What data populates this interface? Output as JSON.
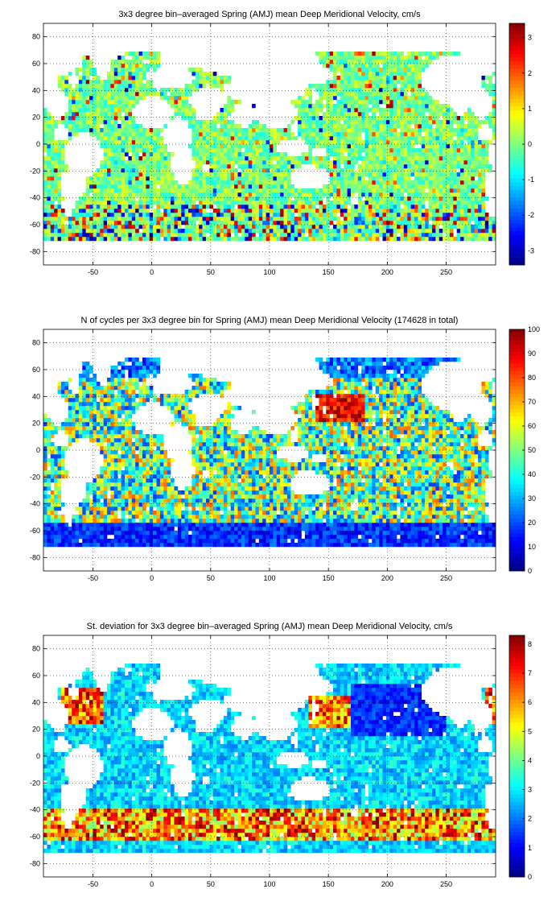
{
  "chart_data": [
    {
      "type": "heatmap",
      "title": "3x3 degree bin–averaged Spring (AMJ) mean Deep Meridional Velocity, cm/s",
      "xlabel": "",
      "ylabel": "",
      "xlim": [
        -92,
        292
      ],
      "ylim": [
        -90,
        90
      ],
      "xticks": [
        -50,
        0,
        50,
        100,
        150,
        200,
        250
      ],
      "yticks": [
        80,
        60,
        40,
        20,
        0,
        -20,
        -40,
        -60,
        -80
      ],
      "colorbar": {
        "min": -3.4,
        "max": 3.4,
        "ticks": [
          3,
          2,
          1,
          0,
          -1,
          -2,
          -3
        ]
      },
      "colormap": "jet",
      "grid": true,
      "field": "meridional-velocity"
    },
    {
      "type": "heatmap",
      "title": "N of cycles per 3x3 degree bin for Spring (AMJ) mean Deep Meridional Velocity (174628 in total)",
      "xlabel": "",
      "ylabel": "",
      "xlim": [
        -92,
        292
      ],
      "ylim": [
        -90,
        90
      ],
      "xticks": [
        -50,
        0,
        50,
        100,
        150,
        200,
        250
      ],
      "yticks": [
        80,
        60,
        40,
        20,
        0,
        -20,
        -40,
        -60,
        -80
      ],
      "colorbar": {
        "min": 0,
        "max": 100,
        "ticks": [
          100,
          90,
          80,
          70,
          60,
          50,
          40,
          30,
          20,
          10,
          0
        ]
      },
      "colormap": "jet",
      "grid": true,
      "field": "cycle-count"
    },
    {
      "type": "heatmap",
      "title": "St. deviation for 3x3 degree bin–averaged Spring (AMJ) mean Deep Meridional Velocity, cm/s",
      "xlabel": "",
      "ylabel": "",
      "xlim": [
        -92,
        292
      ],
      "ylim": [
        -90,
        90
      ],
      "xticks": [
        -50,
        0,
        50,
        100,
        150,
        200,
        250
      ],
      "yticks": [
        80,
        60,
        40,
        20,
        0,
        -20,
        -40,
        -60,
        -80
      ],
      "colorbar": {
        "min": 0,
        "max": 8.3,
        "ticks": [
          8,
          7,
          6,
          5,
          4,
          3,
          2,
          1,
          0
        ]
      },
      "colormap": "jet",
      "grid": true,
      "field": "standard-deviation"
    }
  ]
}
